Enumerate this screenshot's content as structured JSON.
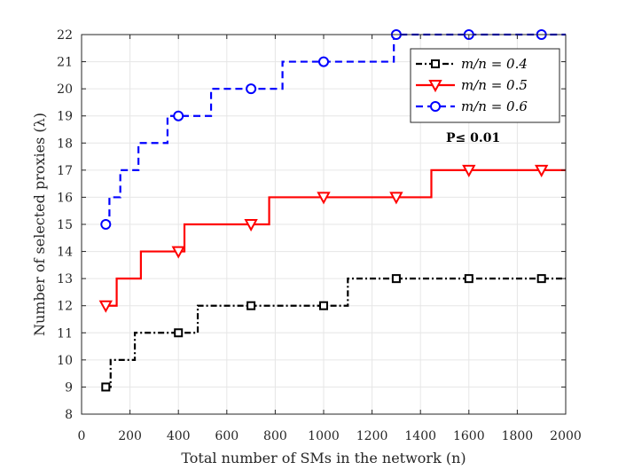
{
  "chart_data": {
    "type": "line",
    "xlabel": "Total number of SMs in the network (n)",
    "ylabel": "Number of selected proxies (λ)",
    "xlim": [
      0,
      2000
    ],
    "ylim": [
      8,
      22
    ],
    "xticks": [
      0,
      200,
      400,
      600,
      800,
      1000,
      1200,
      1400,
      1600,
      1800,
      2000
    ],
    "yticks": [
      8,
      9,
      10,
      11,
      12,
      13,
      14,
      15,
      16,
      17,
      18,
      19,
      20,
      21,
      22
    ],
    "grid": true,
    "legend_position": "top-right",
    "annotation": "P≤ 0.01",
    "series": [
      {
        "name": "m/n = 0.4",
        "color": "#000000",
        "line_style": "dash-dot",
        "marker": "square",
        "steps": [
          [
            100,
            9
          ],
          [
            120,
            10
          ],
          [
            220,
            11
          ],
          [
            480,
            12
          ],
          [
            1100,
            13
          ],
          [
            2000,
            13
          ]
        ],
        "marker_x": [
          100,
          400,
          700,
          1000,
          1300,
          1600,
          1900
        ]
      },
      {
        "name": "m/n = 0.5",
        "color": "#ff0000",
        "line_style": "solid",
        "marker": "triangle-down",
        "steps": [
          [
            100,
            12
          ],
          [
            145,
            13
          ],
          [
            245,
            14
          ],
          [
            425,
            15
          ],
          [
            775,
            16
          ],
          [
            1445,
            17
          ],
          [
            2000,
            17
          ]
        ],
        "marker_x": [
          100,
          400,
          700,
          1000,
          1300,
          1600,
          1900
        ]
      },
      {
        "name": "m/n = 0.6",
        "color": "#0000ff",
        "line_style": "dashed",
        "marker": "circle",
        "steps": [
          [
            100,
            15
          ],
          [
            115,
            16
          ],
          [
            160,
            17
          ],
          [
            235,
            18
          ],
          [
            355,
            19
          ],
          [
            535,
            20
          ],
          [
            830,
            21
          ],
          [
            1290,
            22
          ],
          [
            2000,
            22
          ]
        ],
        "marker_x": [
          100,
          400,
          700,
          1000,
          1300,
          1600,
          1900
        ]
      }
    ]
  }
}
